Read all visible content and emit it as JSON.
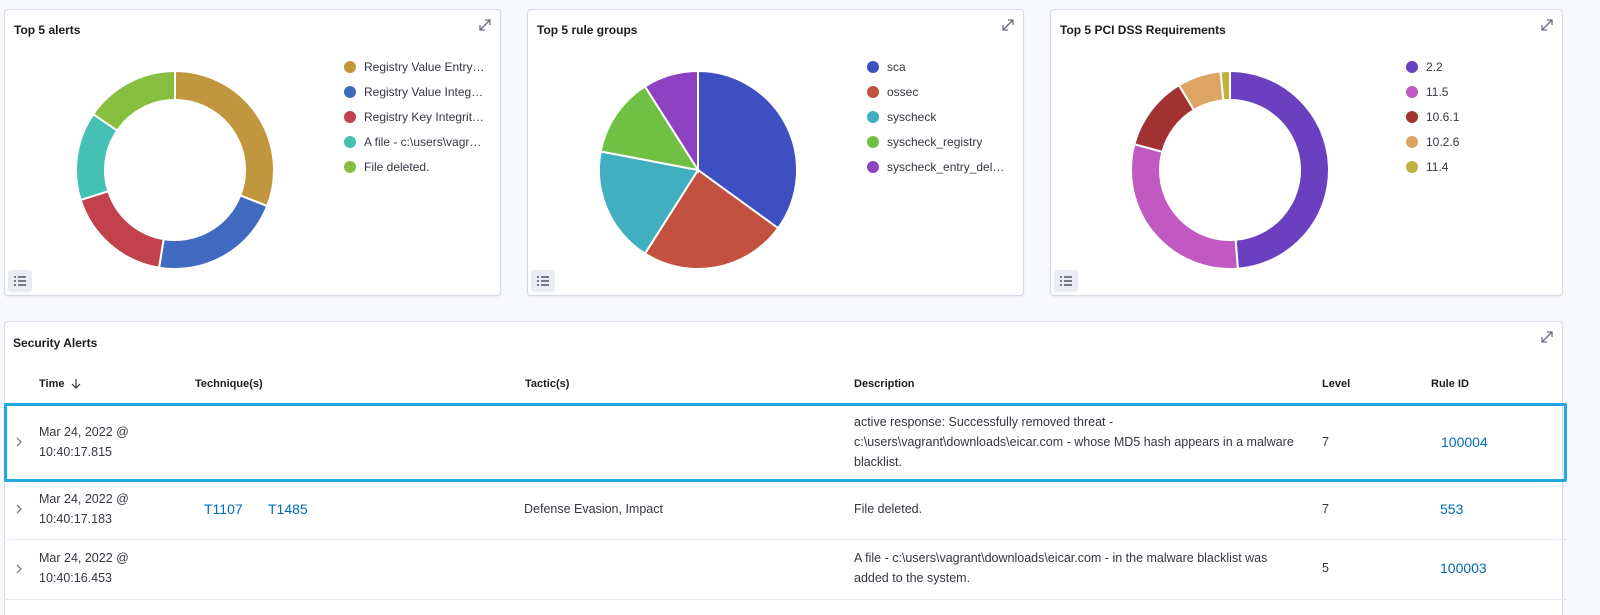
{
  "panels": [
    {
      "title": "Top 5 alerts",
      "type": "donut",
      "legend": [
        "Registry Value Entry…",
        "Registry Value Integ…",
        "Registry Key Integrit…",
        "A file - c:\\users\\vagr…",
        "File deleted."
      ],
      "colors": [
        "#c0963e",
        "#4069c0",
        "#c1424d",
        "#44c1b4",
        "#86bf3f"
      ],
      "values": [
        30,
        21,
        17,
        14,
        15
      ]
    },
    {
      "title": "Top 5 rule groups",
      "type": "pie",
      "legend": [
        "sca",
        "ossec",
        "syscheck",
        "syscheck_registry",
        "syscheck_entry_del…"
      ],
      "colors": [
        "#3e4fc1",
        "#c2513f",
        "#40afc0",
        "#6fc043",
        "#8e42c1"
      ],
      "values": [
        35,
        24,
        19,
        13,
        9
      ]
    },
    {
      "title": "Top 5 PCI DSS Requirements",
      "type": "donut",
      "legend": [
        "2.2",
        "11.5",
        "10.6.1",
        "10.2.6",
        "11.4"
      ],
      "colors": [
        "#6a3fc0",
        "#c059c0",
        "#a03232",
        "#dca565",
        "#c0b03e"
      ],
      "values": [
        48,
        30,
        12,
        7,
        1.5
      ]
    }
  ],
  "security_alerts": {
    "title": "Security Alerts",
    "columns": {
      "time": "Time",
      "technique": "Technique(s)",
      "tactic": "Tactic(s)",
      "description": "Description",
      "level": "Level",
      "rule_id": "Rule ID"
    },
    "rows": [
      {
        "time_date": "Mar 24, 2022 @",
        "time_clock": "10:40:17.815",
        "techniques": [],
        "tactic": "",
        "description": "active response: Successfully removed threat - c:\\users\\vagrant\\downloads\\eicar.com - whose MD5 hash appears in a malware blacklist.",
        "level": "7",
        "rule_id": "100004"
      },
      {
        "time_date": "Mar 24, 2022 @",
        "time_clock": "10:40:17.183",
        "techniques": [
          "T1107",
          "T1485"
        ],
        "tactic": "Defense Evasion, Impact",
        "description": "File deleted.",
        "level": "7",
        "rule_id": "553"
      },
      {
        "time_date": "Mar 24, 2022 @",
        "time_clock": "10:40:16.453",
        "techniques": [],
        "tactic": "",
        "description": "A file - c:\\users\\vagrant\\downloads\\eicar.com - in the malware blacklist was added to the system.",
        "level": "5",
        "rule_id": "100003"
      }
    ]
  },
  "highlight_color": "#1ea7e1",
  "link_color": "#006bb8"
}
